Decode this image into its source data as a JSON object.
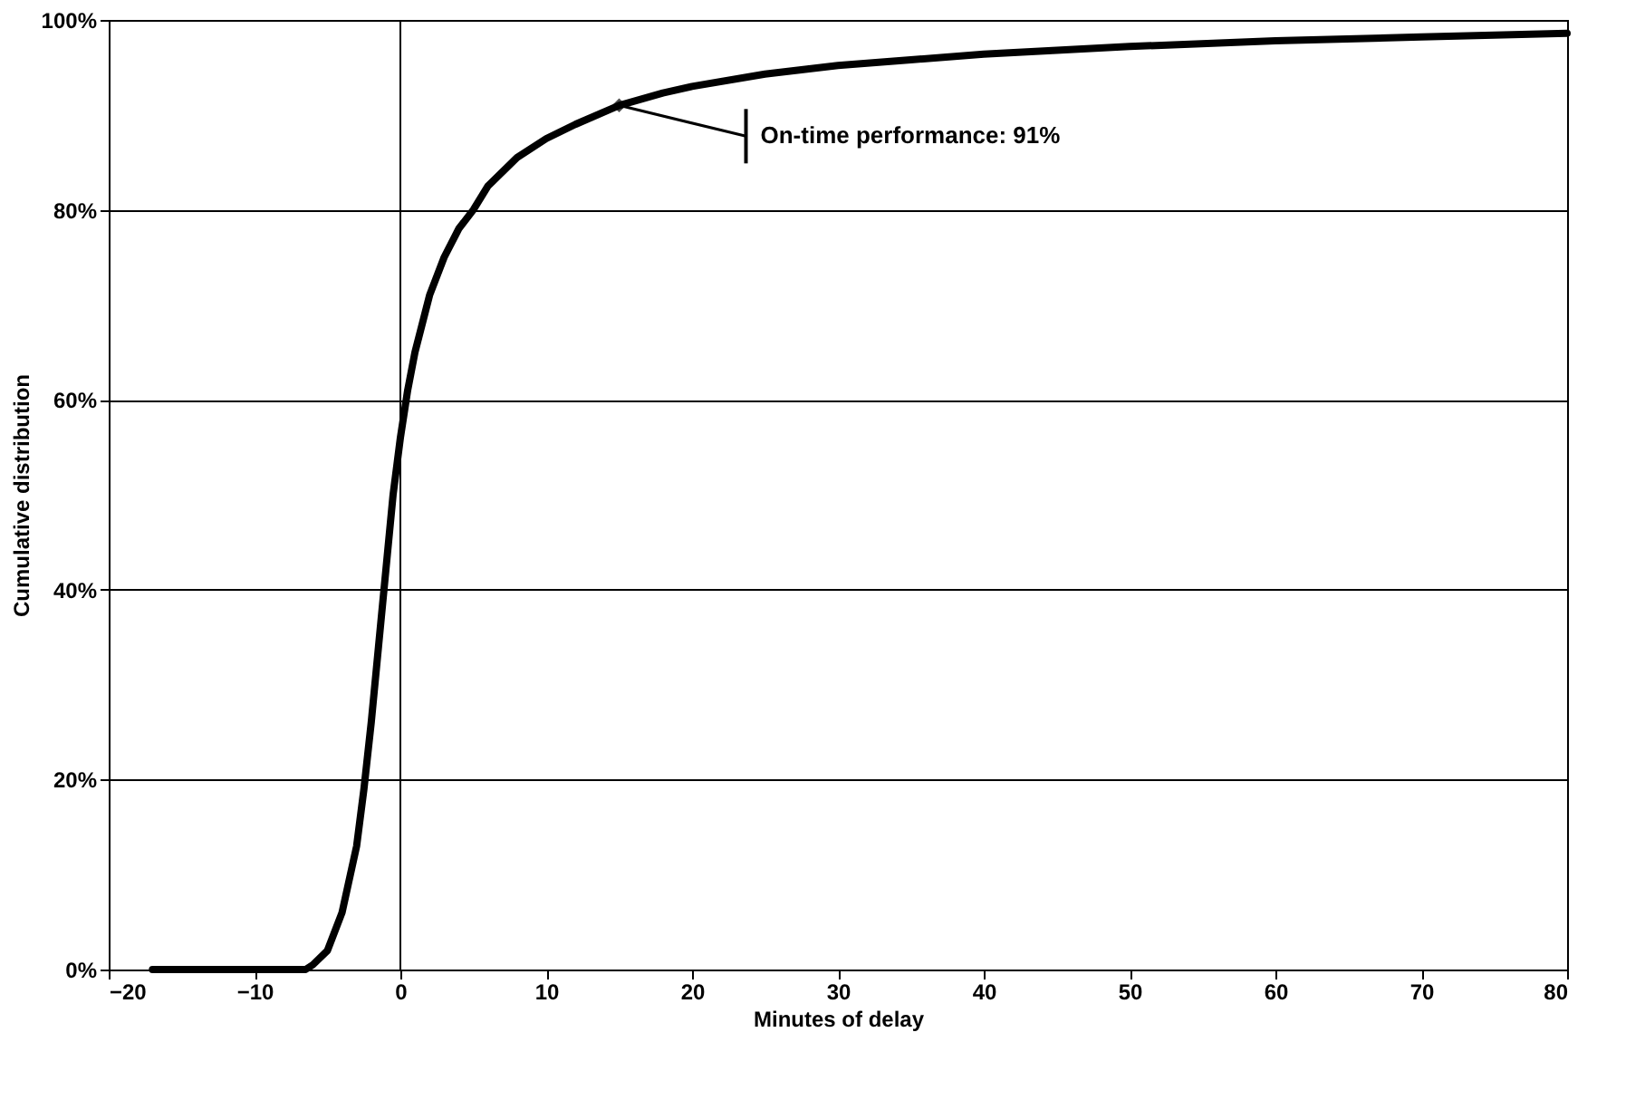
{
  "chart_data": {
    "type": "line",
    "xlabel": "Minutes of delay",
    "ylabel": "Cumulative distribution",
    "x": [
      -17,
      -10,
      -6.5,
      -6,
      -5,
      -4,
      -3,
      -2.5,
      -2,
      -1.5,
      -1,
      -0.5,
      0,
      0.5,
      1,
      2,
      3,
      4,
      5,
      6,
      8,
      10,
      12,
      15,
      18,
      20,
      25,
      30,
      35,
      40,
      50,
      60,
      70,
      80
    ],
    "series": [
      {
        "color": "#000000",
        "values": [
          0,
          0,
          0,
          0.5,
          2,
          6,
          13,
          19,
          26,
          34,
          42,
          50,
          56,
          61,
          65,
          71,
          75,
          78,
          80,
          82.5,
          85.5,
          87.5,
          89,
          91,
          92.3,
          93,
          94.3,
          95.2,
          95.8,
          96.4,
          97.2,
          97.8,
          98.2,
          98.6
        ]
      }
    ],
    "xlim": [
      -20,
      80
    ],
    "xticks": [
      -20,
      -10,
      0,
      10,
      20,
      30,
      40,
      50,
      60,
      70,
      80
    ],
    "ylim": [
      0,
      100
    ],
    "yticks": [
      {
        "value": 0,
        "label": "0%"
      },
      {
        "value": 20,
        "label": "20%"
      },
      {
        "value": 40,
        "label": "40%"
      },
      {
        "value": 60,
        "label": "60%"
      },
      {
        "value": 80,
        "label": "80%"
      },
      {
        "value": 100,
        "label": "100%"
      }
    ],
    "grid": "y",
    "marker": "none",
    "line_style": "solid",
    "ref_lines": [
      {
        "axis": "x",
        "value": 0,
        "color": "#000000"
      }
    ],
    "annotations": [
      {
        "text": "On-time performance: 91%",
        "x": 15,
        "y": 91
      }
    ]
  }
}
